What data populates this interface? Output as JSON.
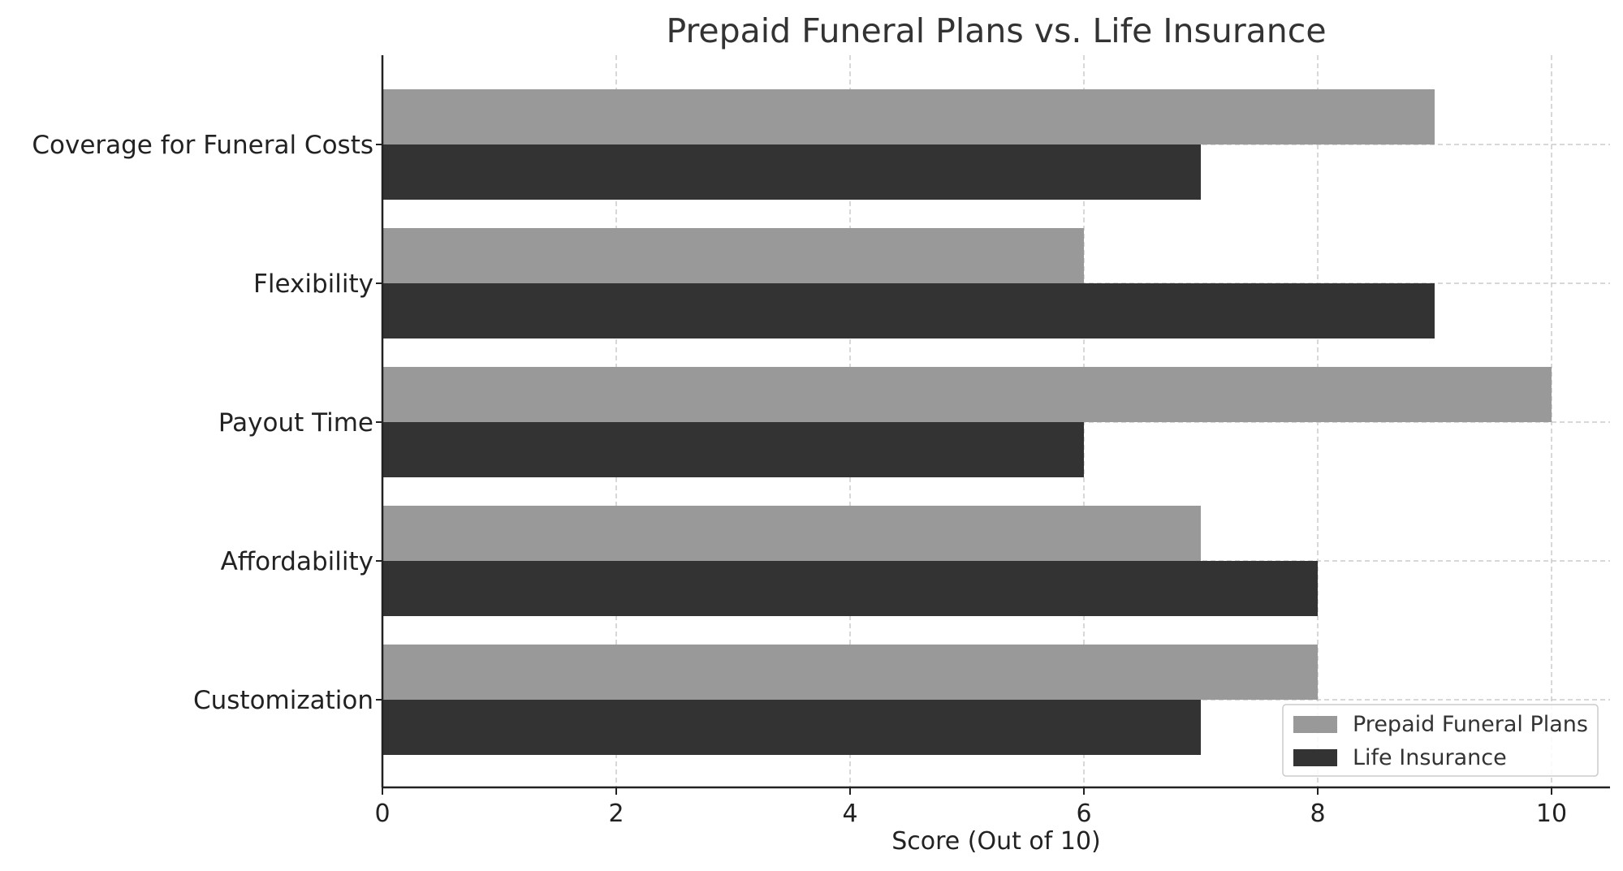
{
  "chart_data": {
    "type": "bar",
    "orientation": "horizontal",
    "title": "Prepaid Funeral Plans vs. Life Insurance",
    "xlabel": "Score (Out of 10)",
    "ylabel": "",
    "categories": [
      "Coverage for Funeral Costs",
      "Flexibility",
      "Payout Time",
      "Affordability",
      "Customization"
    ],
    "series": [
      {
        "name": "Prepaid Funeral Plans",
        "values": [
          9,
          6,
          10,
          7,
          8
        ],
        "color": "#999999"
      },
      {
        "name": "Life Insurance",
        "values": [
          7,
          9,
          6,
          8,
          7
        ],
        "color": "#333333"
      }
    ],
    "xlim": [
      0,
      10.5
    ],
    "xticks": [
      0,
      2,
      4,
      6,
      8,
      10
    ],
    "grid": true,
    "legend_position": "bottom-right"
  }
}
